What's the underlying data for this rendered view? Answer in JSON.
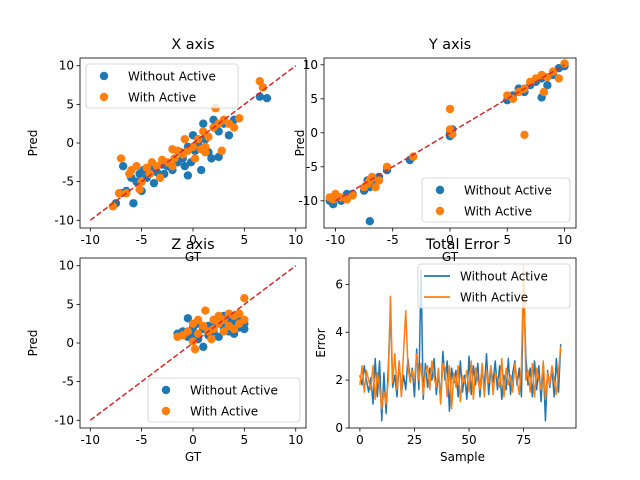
{
  "chart_data": [
    {
      "type": "scatter",
      "title": "X axis",
      "xlabel": "GT",
      "ylabel": "Pred",
      "xlim": [
        -11,
        11
      ],
      "ylim": [
        -11,
        11
      ],
      "xticks": [
        -10,
        -5,
        0,
        5,
        10
      ],
      "yticks": [
        -10,
        -5,
        0,
        5,
        10
      ],
      "legend_position": "upper-left",
      "reference_line": {
        "from": [
          -10,
          -10
        ],
        "to": [
          10,
          10
        ],
        "color": "#d62728",
        "style": "dashed"
      },
      "series": [
        {
          "name": "Without Active",
          "color": "#1f77b4",
          "points": [
            [
              -7.5,
              -7.8
            ],
            [
              -7,
              -6.5
            ],
            [
              -6.8,
              -3
            ],
            [
              -6.5,
              -6.2
            ],
            [
              -6,
              -4.5
            ],
            [
              -5.8,
              -7.8
            ],
            [
              -5.5,
              -5
            ],
            [
              -5.2,
              -4
            ],
            [
              -5,
              -6.2
            ],
            [
              -4.8,
              -3.5
            ],
            [
              -4.5,
              -4.5
            ],
            [
              -4,
              -3.2
            ],
            [
              -3.8,
              -5.2
            ],
            [
              -3.5,
              -3.8
            ],
            [
              -3,
              -2.8
            ],
            [
              -2.8,
              -4
            ],
            [
              -2.5,
              -3
            ],
            [
              -2,
              -3.5
            ],
            [
              -1.5,
              -2.5
            ],
            [
              -1.2,
              -1.2
            ],
            [
              -1,
              -2
            ],
            [
              -0.8,
              -3
            ],
            [
              -0.5,
              -0.5
            ],
            [
              -0.2,
              -2.5
            ],
            [
              0,
              1
            ],
            [
              0.2,
              -1
            ],
            [
              0.5,
              0
            ],
            [
              0.8,
              -3.5
            ],
            [
              1,
              2.5
            ],
            [
              1.2,
              0.5
            ],
            [
              1.5,
              -1.2
            ],
            [
              2,
              3
            ],
            [
              2.5,
              1.5
            ],
            [
              3,
              2.5
            ],
            [
              3.5,
              1
            ],
            [
              4,
              3
            ],
            [
              2.5,
              -1.8
            ],
            [
              6.5,
              6
            ],
            [
              7.2,
              5.8
            ],
            [
              1.8,
              -2
            ],
            [
              -0.5,
              -4.2
            ]
          ]
        },
        {
          "name": "With Active",
          "color": "#ff7f0e",
          "points": [
            [
              -7.8,
              -8.2
            ],
            [
              -7.2,
              -6.5
            ],
            [
              -7,
              -2
            ],
            [
              -6.5,
              -6.5
            ],
            [
              -6.2,
              -4
            ],
            [
              -6,
              -3.5
            ],
            [
              -5.5,
              -3
            ],
            [
              -5.2,
              -6
            ],
            [
              -5,
              -5
            ],
            [
              -4.5,
              -3.2
            ],
            [
              -4.2,
              -4
            ],
            [
              -4,
              -2.5
            ],
            [
              -3.5,
              -3
            ],
            [
              -3.2,
              -4.5
            ],
            [
              -3,
              -2.2
            ],
            [
              -2.5,
              -2.5
            ],
            [
              -2,
              -3
            ],
            [
              -1.8,
              -2
            ],
            [
              -1.5,
              -1
            ],
            [
              -1,
              -1.5
            ],
            [
              -0.8,
              0.5
            ],
            [
              -0.5,
              -1
            ],
            [
              0,
              -0.5
            ],
            [
              0.2,
              -2
            ],
            [
              0.5,
              0.5
            ],
            [
              0.8,
              -0.8
            ],
            [
              1,
              1.5
            ],
            [
              1.2,
              -0.5
            ],
            [
              1.5,
              0.8
            ],
            [
              2,
              2
            ],
            [
              2.2,
              4.5
            ],
            [
              2.5,
              2.5
            ],
            [
              2.8,
              -1
            ],
            [
              3,
              3
            ],
            [
              3.5,
              2.5
            ],
            [
              4,
              2
            ],
            [
              4.5,
              3.2
            ],
            [
              1.2,
              -1.2
            ],
            [
              6.5,
              8
            ],
            [
              6.8,
              7.2
            ],
            [
              -2,
              -0.8
            ]
          ]
        }
      ]
    },
    {
      "type": "scatter",
      "title": "Y axis",
      "xlabel": "GT",
      "ylabel": "Pred",
      "xlim": [
        -11,
        11
      ],
      "ylim": [
        -14,
        11
      ],
      "xticks": [
        -10,
        -5,
        0,
        5,
        10
      ],
      "yticks": [
        -10,
        -5,
        0,
        5,
        10
      ],
      "legend_position": "lower-right",
      "reference_line": {
        "from": [
          -10,
          -10
        ],
        "to": [
          10,
          10
        ],
        "color": "#d62728",
        "style": "dashed"
      },
      "series": [
        {
          "name": "Without Active",
          "color": "#1f77b4",
          "points": [
            [
              -10.5,
              -10
            ],
            [
              -10.2,
              -10.5
            ],
            [
              -10,
              -9.5
            ],
            [
              -9.5,
              -10
            ],
            [
              -9,
              -9
            ],
            [
              -8.5,
              -9
            ],
            [
              -7.5,
              -8.5
            ],
            [
              -7.2,
              -7
            ],
            [
              -7,
              -8
            ],
            [
              -6.8,
              -7.5
            ],
            [
              -6.5,
              -7
            ],
            [
              -6.2,
              -6.5
            ],
            [
              -7,
              -13
            ],
            [
              -5.5,
              -5.5
            ],
            [
              -3.5,
              -4
            ],
            [
              0,
              0
            ],
            [
              0,
              -0.5
            ],
            [
              0.2,
              0.5
            ],
            [
              5,
              4.8
            ],
            [
              5.5,
              5.5
            ],
            [
              6,
              6.5
            ],
            [
              6.5,
              6
            ],
            [
              7,
              7
            ],
            [
              7.5,
              7.5
            ],
            [
              8,
              8
            ],
            [
              8,
              5.2
            ],
            [
              8.5,
              7
            ],
            [
              9,
              8.5
            ],
            [
              9.5,
              9.5
            ],
            [
              10,
              9.8
            ]
          ]
        },
        {
          "name": "With Active",
          "color": "#ff7f0e",
          "points": [
            [
              -10.5,
              -9.5
            ],
            [
              -10.2,
              -9.8
            ],
            [
              -10,
              -9
            ],
            [
              -9.5,
              -9.5
            ],
            [
              -9,
              -9.8
            ],
            [
              -8.5,
              -9.2
            ],
            [
              -7.5,
              -8
            ],
            [
              -7.2,
              -7.5
            ],
            [
              -7,
              -7
            ],
            [
              -6.8,
              -6.5
            ],
            [
              -6.5,
              -8
            ],
            [
              -6.2,
              -7
            ],
            [
              -5.5,
              -5
            ],
            [
              -3.2,
              -3.5
            ],
            [
              0,
              3.5
            ],
            [
              0,
              0.5
            ],
            [
              0.2,
              -0.2
            ],
            [
              5,
              5.5
            ],
            [
              5.5,
              5
            ],
            [
              6,
              6
            ],
            [
              6.5,
              -0.3
            ],
            [
              6.5,
              6.5
            ],
            [
              7,
              7.5
            ],
            [
              7.5,
              8
            ],
            [
              8,
              8.5
            ],
            [
              8.2,
              6
            ],
            [
              8.5,
              8.2
            ],
            [
              9,
              9
            ],
            [
              9.5,
              8
            ],
            [
              10,
              10.2
            ]
          ]
        }
      ]
    },
    {
      "type": "scatter",
      "title": "Z axis",
      "xlabel": "GT",
      "ylabel": "Pred",
      "xlim": [
        -11,
        11
      ],
      "ylim": [
        -11,
        11
      ],
      "xticks": [
        -10,
        -5,
        0,
        5,
        10
      ],
      "yticks": [
        -10,
        -5,
        0,
        5,
        10
      ],
      "legend_position": "lower-right",
      "reference_line": {
        "from": [
          -10,
          -10
        ],
        "to": [
          10,
          10
        ],
        "color": "#d62728",
        "style": "dashed"
      },
      "series": [
        {
          "name": "Without Active",
          "color": "#1f77b4",
          "points": [
            [
              -1.5,
              1.2
            ],
            [
              -1,
              1.5
            ],
            [
              -0.5,
              0.8
            ],
            [
              -0.5,
              3.2
            ],
            [
              0,
              2
            ],
            [
              0,
              1
            ],
            [
              0.5,
              0.5
            ],
            [
              0.5,
              2.5
            ],
            [
              1,
              1.8
            ],
            [
              1,
              -0.5
            ],
            [
              1.5,
              2.2
            ],
            [
              1.5,
              1
            ],
            [
              2,
              2.5
            ],
            [
              2,
              1.5
            ],
            [
              2.5,
              3
            ],
            [
              2.5,
              0.8
            ],
            [
              3,
              2
            ],
            [
              3,
              3.5
            ],
            [
              3.5,
              1.5
            ],
            [
              3.5,
              2.8
            ],
            [
              4,
              2.5
            ],
            [
              4,
              1.2
            ],
            [
              4.5,
              3
            ],
            [
              4.5,
              2
            ],
            [
              5,
              2.5
            ],
            [
              5,
              1.8
            ]
          ]
        },
        {
          "name": "With Active",
          "color": "#ff7f0e",
          "points": [
            [
              -1.5,
              0.8
            ],
            [
              -1,
              1
            ],
            [
              -0.5,
              1.5
            ],
            [
              0,
              2.5
            ],
            [
              0,
              0.2
            ],
            [
              0.2,
              -0.8
            ],
            [
              0.5,
              1.2
            ],
            [
              0.5,
              3
            ],
            [
              1,
              2.2
            ],
            [
              1.2,
              4.2
            ],
            [
              1.5,
              1.5
            ],
            [
              1.8,
              0.5
            ],
            [
              2,
              3
            ],
            [
              2,
              1.8
            ],
            [
              2.5,
              2.5
            ],
            [
              2.5,
              3.5
            ],
            [
              3,
              1.5
            ],
            [
              3,
              3
            ],
            [
              3.5,
              2.2
            ],
            [
              3.5,
              3.8
            ],
            [
              4,
              1.8
            ],
            [
              4,
              3.5
            ],
            [
              4.5,
              2.5
            ],
            [
              4.5,
              3.8
            ],
            [
              5,
              5.8
            ],
            [
              5,
              3
            ]
          ]
        }
      ]
    },
    {
      "type": "line",
      "title": "Total Error",
      "xlabel": "Sample",
      "ylabel": "Error",
      "xlim": [
        -5,
        99
      ],
      "ylim": [
        0,
        7.1
      ],
      "xticks": [
        0,
        25,
        50,
        75
      ],
      "yticks": [
        0,
        2,
        4,
        6
      ],
      "legend_position": "upper-right",
      "series": [
        {
          "name": "Without Active",
          "color": "#1f77b4",
          "values": [
            2.2,
            1.8,
            2.6,
            2.0,
            1.5,
            2.1,
            1.0,
            2.9,
            1.3,
            2.8,
            0.3,
            2.3,
            0.6,
            2.5,
            5.0,
            1.7,
            2.2,
            1.3,
            2.8,
            1.4,
            2.2,
            1.6,
            2.9,
            2.0,
            2.5,
            1.3,
            3.3,
            1.6,
            6.6,
            1.2,
            2.7,
            1.7,
            2.5,
            2.0,
            2.9,
            1.4,
            2.3,
            1.1,
            3.2,
            2.0,
            2.8,
            0.7,
            2.5,
            1.9,
            2.4,
            1.3,
            2.8,
            1.5,
            2.2,
            1.2,
            3.0,
            1.4,
            2.6,
            1.8,
            2.7,
            1.3,
            2.5,
            1.7,
            3.1,
            1.4,
            2.5,
            1.9,
            2.8,
            1.6,
            2.6,
            1.2,
            2.2,
            1.6,
            2.9,
            1.4,
            2.3,
            2.8,
            1.8,
            2.5,
            1.3,
            6.2,
            3.0,
            1.8,
            2.5,
            1.3,
            2.8,
            1.6,
            2.6,
            1.1,
            2.7,
            0.3,
            2.4,
            1.7,
            2.5,
            1.3,
            2.9,
            1.5,
            3.5
          ]
        },
        {
          "name": "With Active",
          "color": "#ff7f0e",
          "values": [
            1.8,
            2.6,
            1.5,
            2.4,
            2.0,
            1.6,
            2.6,
            1.2,
            2.3,
            1.7,
            0.8,
            1.5,
            1.0,
            2.0,
            5.5,
            1.9,
            3.1,
            1.6,
            2.8,
            1.3,
            3.2,
            4.9,
            2.6,
            1.9,
            2.4,
            2.0,
            3.1,
            2.0,
            2.7,
            1.4,
            2.3,
            2.6,
            1.6,
            2.8,
            2.1,
            1.7,
            2.5,
            1.0,
            2.7,
            2.5,
            1.3,
            2.6,
            0.8,
            2.3,
            1.7,
            2.6,
            1.1,
            2.2,
            1.9,
            2.4,
            1.5,
            2.8,
            1.2,
            2.5,
            2.0,
            1.6,
            2.7,
            1.3,
            2.4,
            1.9,
            2.6,
            1.4,
            2.3,
            2.1,
            1.7,
            2.9,
            1.3,
            2.5,
            1.8,
            2.2,
            1.5,
            2.7,
            2.0,
            1.4,
            2.6,
            6.8,
            2.0,
            2.4,
            1.5,
            2.7,
            1.3,
            2.5,
            2.0,
            1.6,
            2.8,
            1.2,
            2.3,
            1.8,
            2.6,
            2.0,
            1.4,
            2.4,
            3.4
          ]
        }
      ]
    }
  ]
}
